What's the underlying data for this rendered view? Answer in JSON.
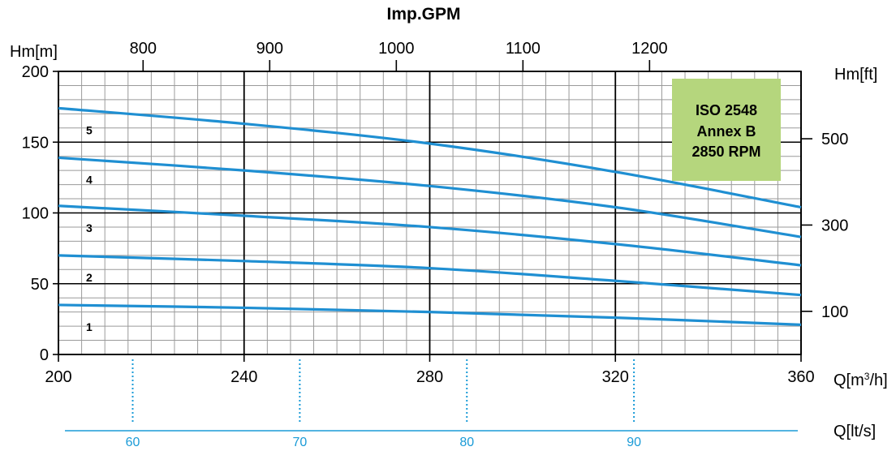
{
  "chart_data": {
    "type": "line",
    "title": "Imp.GPM",
    "y_label": "Hm[m]",
    "y2_label": "Hm[ft]",
    "x_label_prefix": "Q[m",
    "x_label_sup": "3",
    "x_label_suffix": "/h]",
    "x2_label": "Q[lt/s]",
    "xlim": [
      200,
      360
    ],
    "ylim": [
      0,
      200
    ],
    "grid": true,
    "x_ticks": [
      200,
      240,
      280,
      320,
      360
    ],
    "y_ticks": [
      0,
      50,
      100,
      150,
      200
    ],
    "ft_ticks": [
      100,
      300,
      500
    ],
    "gpm_ticks": [
      800,
      900,
      1000,
      1100,
      1200
    ],
    "lts_ticks": [
      60,
      70,
      80,
      90
    ],
    "annotation_box": {
      "lines": [
        "ISO 2548",
        "Annex B",
        "2850 RPM"
      ],
      "color": "#b5d67d"
    },
    "line_color": "#1f8fd2",
    "secondary_color": "#1a9bd7",
    "series": [
      {
        "label": "1",
        "x": [
          200,
          240,
          280,
          320,
          360
        ],
        "y": [
          35,
          33,
          30,
          26,
          21
        ]
      },
      {
        "label": "2",
        "x": [
          200,
          240,
          280,
          320,
          360
        ],
        "y": [
          70,
          66,
          61,
          52,
          42
        ]
      },
      {
        "label": "3",
        "x": [
          200,
          240,
          280,
          320,
          360
        ],
        "y": [
          105,
          98,
          90,
          78,
          63
        ]
      },
      {
        "label": "4",
        "x": [
          200,
          240,
          280,
          320,
          360
        ],
        "y": [
          139,
          130,
          119,
          104,
          83
        ]
      },
      {
        "label": "5",
        "x": [
          200,
          240,
          280,
          320,
          360
        ],
        "y": [
          174,
          163,
          149,
          129,
          104
        ]
      }
    ]
  }
}
